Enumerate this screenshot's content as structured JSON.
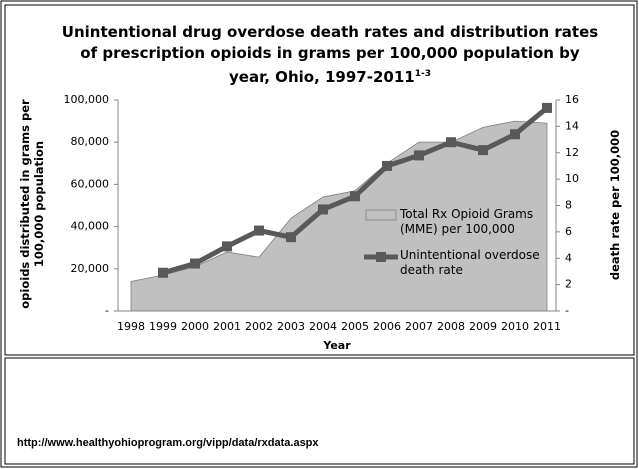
{
  "chart_data": {
    "type": "area-line",
    "title": "Unintentional drug overdose death rates and distribution rates of prescription opioids in grams per 100,000 population by year, Ohio, 1997-2011",
    "title_superscript": "1-3",
    "x_label": "Year",
    "y_label": "opioids distributed in grams per 100,000 population",
    "y2_label": "death rate per 100,000",
    "categories": [
      "1998",
      "1999",
      "2000",
      "2001",
      "2002",
      "2003",
      "2004",
      "2005",
      "2006",
      "2007",
      "2008",
      "2009",
      "2010",
      "2011"
    ],
    "series": [
      {
        "name": "Total Rx Opioid Grams (MME) per 100,000",
        "kind": "area",
        "color": "#c0c0c0",
        "values": [
          14000,
          17000,
          21000,
          28000,
          25500,
          44000,
          54000,
          57000,
          70000,
          80000,
          80000,
          87000,
          90000,
          89000
        ]
      },
      {
        "name": "Unintentional overdose death rate",
        "kind": "line",
        "axis": "y2",
        "color": "#595959",
        "values": [
          null,
          2.9,
          3.6,
          4.9,
          6.1,
          5.6,
          7.7,
          8.7,
          11.0,
          11.8,
          12.8,
          12.2,
          13.4,
          15.4
        ]
      }
    ],
    "ylim": [
      0,
      100000
    ],
    "yticks": [
      {
        "value": 0,
        "label": "-"
      },
      {
        "value": 20000,
        "label": "20,000"
      },
      {
        "value": 40000,
        "label": "40,000"
      },
      {
        "value": 60000,
        "label": "60,000"
      },
      {
        "value": 80000,
        "label": "80,000"
      },
      {
        "value": 100000,
        "label": "100,000"
      }
    ],
    "y2lim": [
      0,
      16
    ],
    "y2ticks": [
      {
        "value": 0,
        "label": "-"
      },
      2,
      4,
      6,
      8,
      10,
      12,
      14,
      16
    ],
    "grid": false
  },
  "source": "http://www.healthyohioprogram.org/vipp/data/rxdata.aspx"
}
